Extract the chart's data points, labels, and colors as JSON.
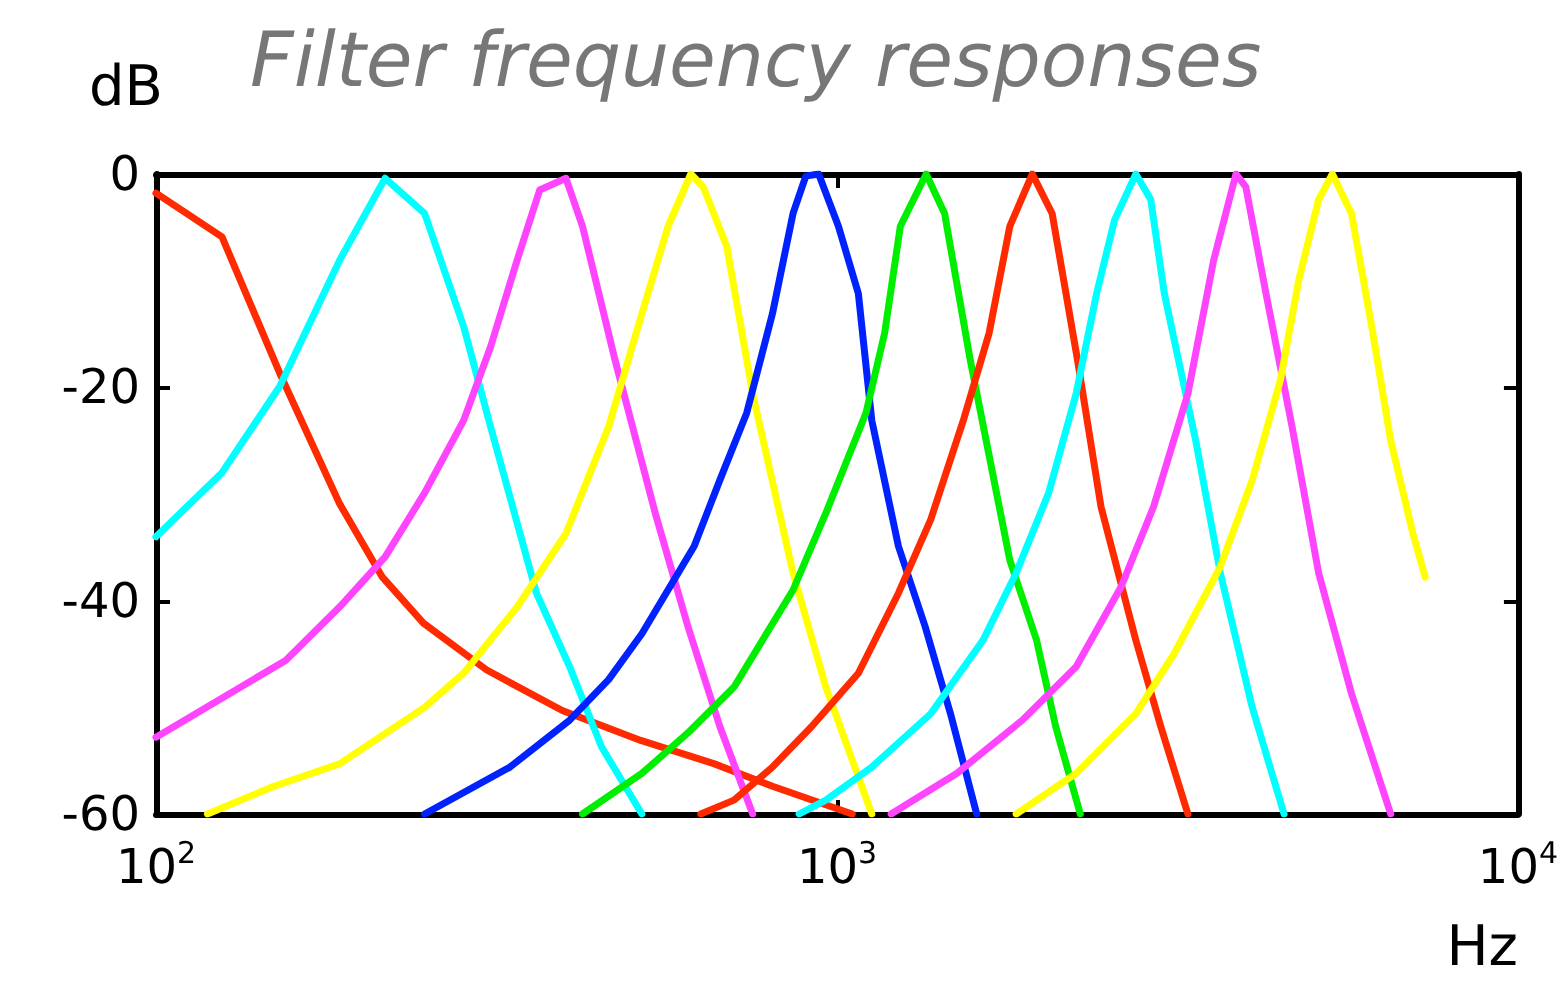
{
  "chart_data": {
    "type": "line",
    "title": "Filter frequency responses",
    "xlabel": "Hz",
    "ylabel": "dB",
    "log": "x",
    "grid": false,
    "marker": "none",
    "line_style": "solid",
    "xlim": [
      100,
      10000
    ],
    "xticks": [
      {
        "value": 100,
        "label": "10$^{2}$"
      },
      {
        "value": 1000,
        "label": "10$^{3}$"
      },
      {
        "value": 10000,
        "label": "10$^{4}$"
      }
    ],
    "ylim": [
      -60,
      0
    ],
    "yticks": [
      -60,
      -40,
      -20,
      0
    ],
    "series": [
      {
        "color": "#ff2a00",
        "x": [
          100,
          125,
          152,
          186,
          215,
          247,
          306,
          395,
          515,
          661,
          804,
          1053
        ],
        "values": [
          -1.8,
          -5.9,
          -18.7,
          -30.9,
          -37.8,
          -42.1,
          -46.5,
          -50.3,
          -53.1,
          -55.3,
          -57.4,
          -60
        ]
      },
      {
        "color": "#00ffff",
        "x": [
          100,
          125,
          152,
          186,
          217,
          248,
          283,
          310,
          362,
          405,
          451,
          517
        ],
        "values": [
          -34,
          -28,
          -19.9,
          -8.1,
          -0.4,
          -3.7,
          -14.3,
          -23.7,
          -39.3,
          -46.2,
          -53.7,
          -60
        ]
      },
      {
        "color": "#ff44ff",
        "x": [
          100,
          155,
          186,
          217,
          248,
          283,
          310,
          339,
          366,
          400,
          423,
          472,
          541,
          604,
          673,
          752
        ],
        "values": [
          -52.8,
          -45.6,
          -40.6,
          -35.9,
          -29.9,
          -23.1,
          -16.2,
          -8.1,
          -1.5,
          -0.4,
          -4.9,
          -17.4,
          -31.8,
          -42.4,
          -51.8,
          -60
        ]
      },
      {
        "color": "#ffff00",
        "x": [
          119,
          149,
          186,
          248,
          283,
          339,
          400,
          462,
          517,
          565,
          610,
          636,
          689,
          752,
          862,
          963,
          1125
        ],
        "values": [
          -60,
          -57.4,
          -55.3,
          -50,
          -46.8,
          -40.6,
          -33.7,
          -23.7,
          -13.1,
          -4.9,
          0,
          -1.2,
          -6.8,
          -20.6,
          -37.4,
          -48.1,
          -60
        ]
      },
      {
        "color": "#0022ff",
        "x": [
          248,
          331,
          405,
          462,
          517,
          617,
          673,
          737,
          804,
          862,
          900,
          940,
          1005,
          1075,
          1125,
          1231,
          1347,
          1468,
          1604
        ],
        "values": [
          -60,
          -55.6,
          -51.2,
          -47.4,
          -43.1,
          -34.9,
          -28.7,
          -22.4,
          -13.1,
          -3.7,
          -0.2,
          0,
          -4.9,
          -11.2,
          -23.1,
          -34.9,
          -42.4,
          -50.6,
          -60
        ]
      },
      {
        "color": "#00ee00",
        "x": [
          423,
          517,
          604,
          706,
          862,
          963,
          1103,
          1175,
          1239,
          1352,
          1439,
          1569,
          1794,
          1964,
          2095,
          2277
        ],
        "values": [
          -60,
          -56.2,
          -52.4,
          -48.1,
          -39,
          -31.8,
          -22.4,
          -14.9,
          -4.9,
          0,
          -3.7,
          -17.4,
          -36.2,
          -43.7,
          -51.8,
          -60
        ]
      },
      {
        "color": "#ff2a00",
        "x": [
          631,
          706,
          804,
          918,
          1075,
          1231,
          1373,
          1533,
          1673,
          1794,
          1936,
          2070,
          2255,
          2442,
          2747,
          2989,
          3276
        ],
        "values": [
          -60,
          -58.7,
          -55.6,
          -51.8,
          -46.8,
          -39.3,
          -32.4,
          -23.1,
          -14.9,
          -4.9,
          0,
          -3.7,
          -17.4,
          -31.2,
          -43.7,
          -51.8,
          -60
        ]
      },
      {
        "color": "#00ffff",
        "x": [
          880,
          963,
          1125,
          1373,
          1639,
          1833,
          2046,
          2245,
          2406,
          2557,
          2747,
          2889,
          3025,
          3364,
          3656,
          4072,
          4535
        ],
        "values": [
          -60,
          -58.7,
          -55.6,
          -50.6,
          -43.7,
          -37.4,
          -29.9,
          -20.6,
          -11.2,
          -4.3,
          0,
          -2.4,
          -11.2,
          -25,
          -37.4,
          -50,
          -60
        ]
      },
      {
        "color": "#ff44ff",
        "x": [
          1201,
          1499,
          1872,
          2245,
          2614,
          2917,
          3276,
          3574,
          3854,
          3985,
          4266,
          4660,
          5097,
          5696,
          6504
        ],
        "values": [
          -60,
          -56.2,
          -51.2,
          -46.2,
          -38.7,
          -31.2,
          -20.6,
          -8.1,
          0,
          -1.2,
          -11.2,
          -23.7,
          -37.4,
          -48.7,
          -60
        ]
      },
      {
        "color": "#ffff00",
        "x": [
          1833,
          2245,
          2747,
          3125,
          3656,
          4072,
          4480,
          4768,
          5097,
          5340,
          5696,
          6100,
          6504,
          7010,
          7310
        ],
        "values": [
          -60,
          -56.2,
          -50.6,
          -45,
          -36.8,
          -28.7,
          -19.3,
          -9.9,
          -2.4,
          0,
          -3.7,
          -14.3,
          -25,
          -33.7,
          -37.8
        ]
      }
    ]
  }
}
